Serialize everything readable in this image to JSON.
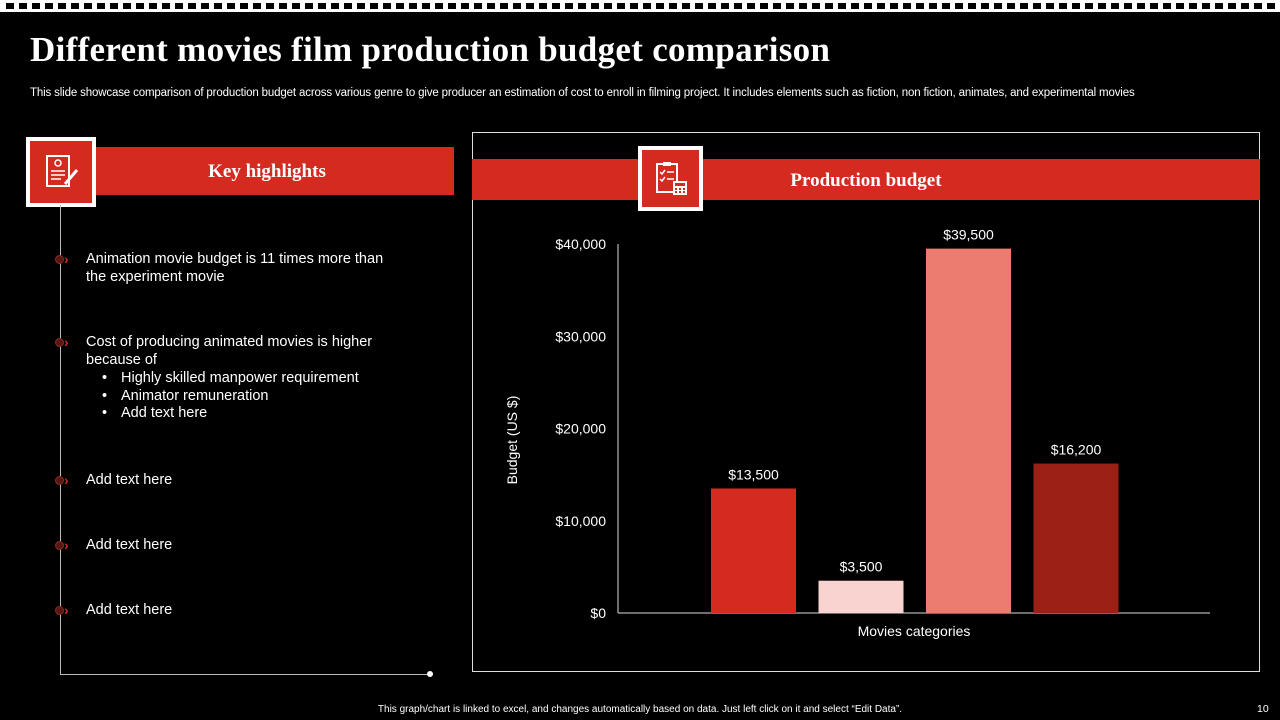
{
  "slide": {
    "title": "Different movies film production budget comparison",
    "subtitle": "This slide showcase comparison of production budget across various genre to give producer an estimation of cost to enroll in filming project. It includes elements such as fiction, non fiction, animates, and experimental movies",
    "footer": "This graph/chart is linked to excel, and changes automatically based on data. Just left click on it and select “Edit Data”.",
    "page_number": "10"
  },
  "left_panel": {
    "header": "Key highlights",
    "icon": "checklist-pen-icon",
    "bullets": [
      {
        "text": "Animation movie budget is 11 times more than the experiment movie"
      },
      {
        "text": "Cost of producing animated movies is higher because of",
        "sub": [
          "Highly skilled manpower requirement",
          "Animator remuneration",
          "Add text here"
        ]
      },
      {
        "text": "Add text here"
      },
      {
        "text": "Add text here"
      },
      {
        "text": "Add text here"
      }
    ]
  },
  "right_panel": {
    "header": "Production budget",
    "icon": "clipboard-calculator-icon"
  },
  "colors": {
    "accent": "#d42a20",
    "bar_colors": [
      "#d42a20",
      "#f8d3cf",
      "#ec7b70",
      "#9c2016"
    ]
  },
  "chart_data": {
    "type": "bar",
    "categories": [
      "",
      "",
      "",
      ""
    ],
    "values": [
      13500,
      3500,
      39500,
      16200
    ],
    "data_labels": [
      "$13,500",
      "$3,500",
      "$39,500",
      "$16,200"
    ],
    "xlabel": "Movies categories",
    "ylabel": "Budget (US $)",
    "ylim": [
      0,
      40000
    ],
    "yticks": [
      0,
      10000,
      20000,
      30000,
      40000
    ],
    "ytick_labels": [
      "$0",
      "$10,000",
      "$20,000",
      "$30,000",
      "$40,000"
    ],
    "grid": false,
    "legend": "none"
  }
}
